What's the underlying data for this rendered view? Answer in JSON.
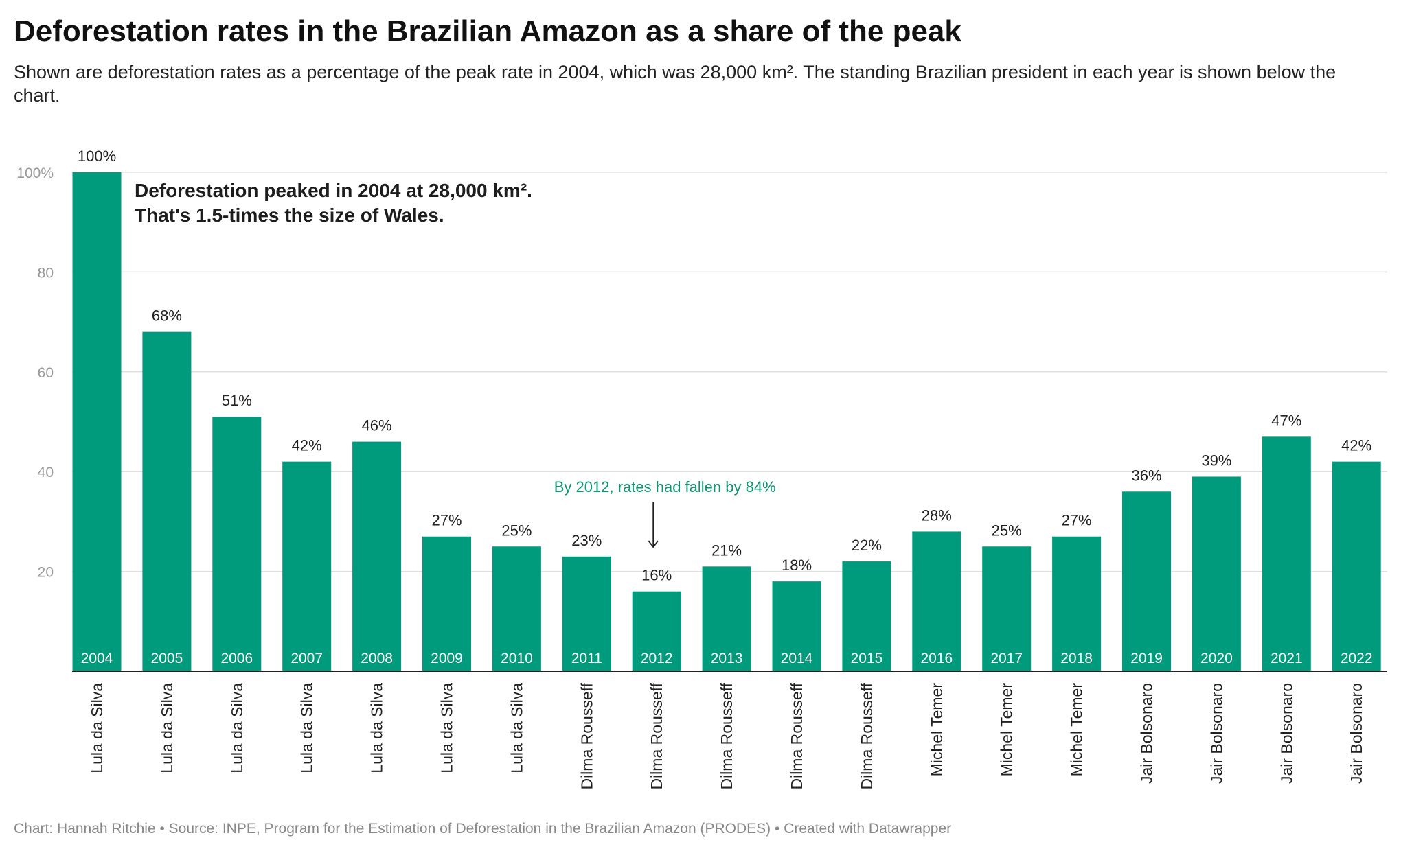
{
  "title": "Deforestation rates in the Brazilian Amazon as a share of the peak",
  "subtitle": "Shown are deforestation rates as a percentage of the peak rate in 2004, which was 28,000 km². The standing Brazilian president in each year is shown below the chart.",
  "footer": "Chart: Hannah Ritchie • Source: INPE, Program for the Estimation of Deforestation in the Brazilian Amazon (PRODES) • Created with Datawrapper",
  "colors": {
    "bar": "#009b7d",
    "annotation_green": "#119474",
    "gridline": "#e0e0e0",
    "axis": "#222222"
  },
  "chart_data": {
    "type": "bar",
    "categories": [
      "2004",
      "2005",
      "2006",
      "2007",
      "2008",
      "2009",
      "2010",
      "2011",
      "2012",
      "2013",
      "2014",
      "2015",
      "2016",
      "2017",
      "2018",
      "2019",
      "2020",
      "2021",
      "2022"
    ],
    "values": [
      100,
      68,
      51,
      42,
      46,
      27,
      25,
      23,
      16,
      21,
      18,
      22,
      28,
      25,
      27,
      36,
      39,
      47,
      42
    ],
    "value_labels": [
      "100%",
      "68%",
      "51%",
      "42%",
      "46%",
      "27%",
      "25%",
      "23%",
      "16%",
      "21%",
      "18%",
      "22%",
      "28%",
      "25%",
      "27%",
      "36%",
      "39%",
      "47%",
      "42%"
    ],
    "presidents": [
      "Lula da Silva",
      "Lula da Silva",
      "Lula da Silva",
      "Lula da Silva",
      "Lula da Silva",
      "Lula da Silva",
      "Lula da Silva",
      "Dilma Rousseff",
      "Dilma Rousseff",
      "Dilma Rousseff",
      "Dilma Rousseff",
      "Dilma Rousseff",
      "Michel Temer",
      "Michel Temer",
      "Michel Temer",
      "Jair Bolsonaro",
      "Jair Bolsonaro",
      "Jair Bolsonaro",
      "Jair Bolsonaro"
    ],
    "yticks": [
      20,
      40,
      60,
      80,
      100
    ],
    "ytick_labels": [
      "20",
      "40",
      "60",
      "80",
      "100%"
    ],
    "ylim": [
      0,
      100
    ],
    "grid": true,
    "annotations": {
      "peak_line1": "Deforestation peaked in 2004 at 28,000 km².",
      "peak_line2": "That's 1.5-times the size of Wales.",
      "fall_note": "By 2012, rates had fallen by 84%",
      "fall_note_year": "2012"
    }
  }
}
